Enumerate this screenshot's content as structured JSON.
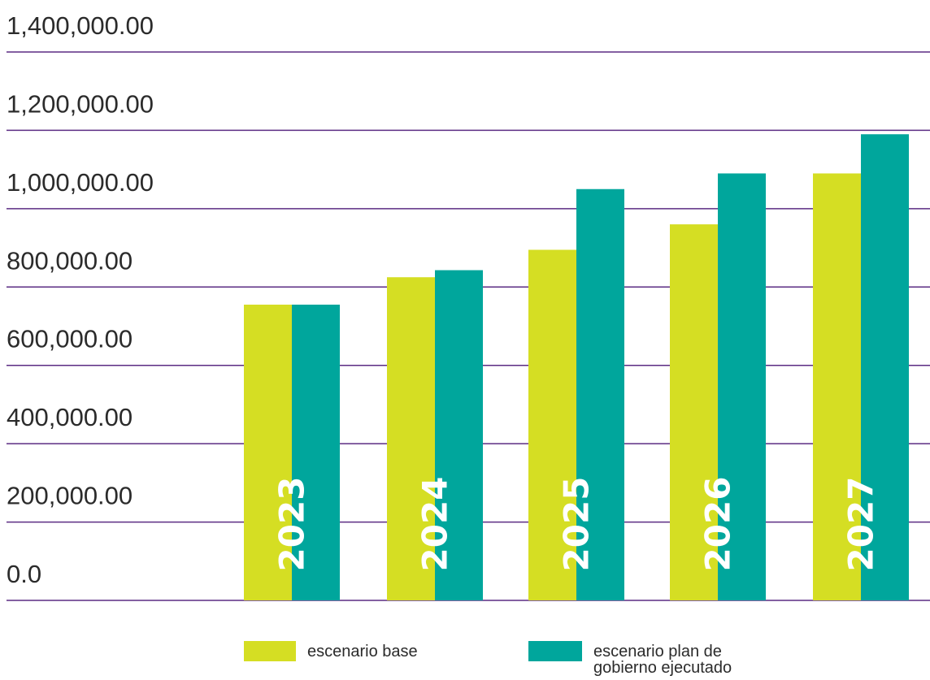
{
  "chart_data": {
    "type": "bar",
    "categories": [
      "2023",
      "2024",
      "2025",
      "2026",
      "2027"
    ],
    "series": [
      {
        "name": "escenario base",
        "color": "#d5de23",
        "values": [
          755000,
          825000,
          895000,
          960000,
          1090000
        ]
      },
      {
        "name": "escenario plan de gobierno ejecutado",
        "color": "#00a69c",
        "values": [
          755000,
          843000,
          1050000,
          1090000,
          1190000
        ]
      }
    ],
    "yticks": [
      "0.0",
      "200,000.00",
      "400,000.00",
      "600,000.00",
      "800,000.00",
      "1,000,000.00",
      "1,200,000.00",
      "1,400,000.00"
    ],
    "ylim": [
      0,
      1400000
    ],
    "grid": true,
    "gridline_color": "#5b2c83",
    "legend_position": "bottom",
    "legend": [
      {
        "label": "escenario base"
      },
      {
        "label_lines": [
          "escenario plan de",
          "gobierno ejecutado"
        ]
      }
    ],
    "title": "",
    "xlabel": "",
    "ylabel": ""
  }
}
